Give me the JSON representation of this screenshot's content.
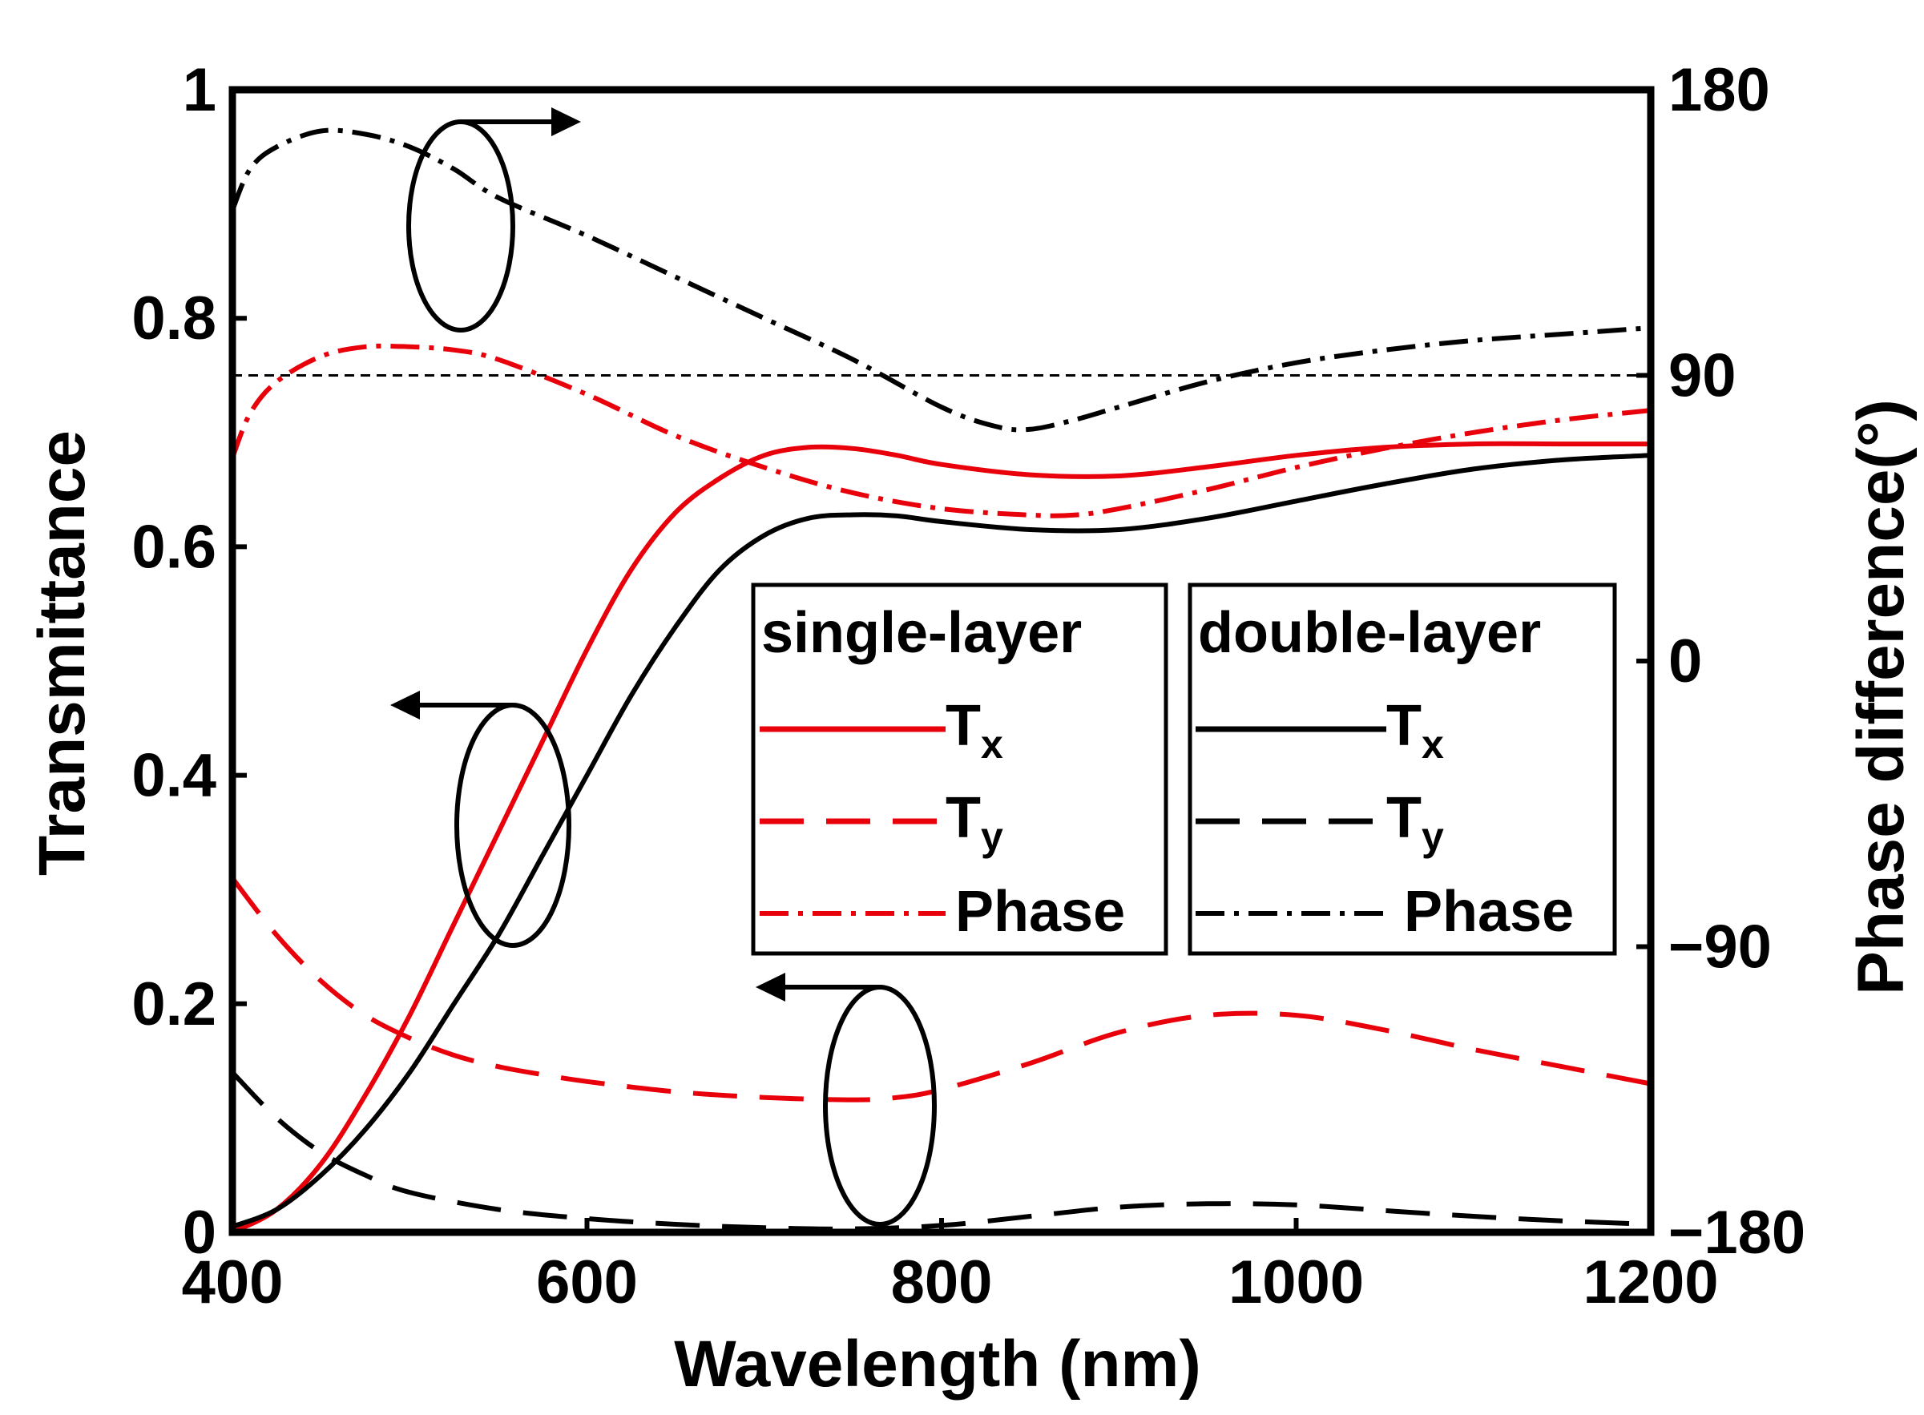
{
  "chart_data": {
    "type": "line",
    "xlabel": "Wavelength (nm)",
    "ylabel": "Transmittance",
    "y2label": "Phase difference(°)",
    "xlim": [
      400,
      1200
    ],
    "ylim": [
      0,
      1
    ],
    "y2lim": [
      -180,
      180
    ],
    "x_ticks": [
      "400",
      "600",
      "800",
      "1000",
      "1200"
    ],
    "y_ticks": [
      "0",
      "0.2",
      "0.4",
      "0.6",
      "0.8",
      "1"
    ],
    "y2_ticks": [
      "−180",
      "−90",
      "0",
      "90",
      "180"
    ],
    "reference_line": {
      "axis": "y2",
      "value": 90,
      "style": "dashed",
      "color": "#000000"
    },
    "legend": {
      "placement": "center-right",
      "groups": [
        {
          "title": "single-layer",
          "entries": [
            {
              "label": "T",
              "sub": "x",
              "series": 0
            },
            {
              "label": "T",
              "sub": "y",
              "series": 1
            },
            {
              "label": "Phase",
              "sub": "",
              "series": 2
            }
          ]
        },
        {
          "title": "double-layer",
          "entries": [
            {
              "label": "T",
              "sub": "x",
              "series": 3
            },
            {
              "label": "T",
              "sub": "y",
              "series": 4
            },
            {
              "label": "Phase",
              "sub": "",
              "series": 5
            }
          ]
        }
      ]
    },
    "series": [
      {
        "group": "single-layer",
        "axis": "y",
        "color": "#e8000b",
        "dash": "solid",
        "x": [
          400,
          425,
          450,
          475,
          500,
          525,
          550,
          575,
          600,
          625,
          650,
          675,
          700,
          725,
          750,
          775,
          800,
          850,
          900,
          950,
          1000,
          1050,
          1100,
          1150,
          1200
        ],
        "y": [
          0.0,
          0.02,
          0.06,
          0.12,
          0.19,
          0.27,
          0.35,
          0.43,
          0.51,
          0.58,
          0.63,
          0.66,
          0.68,
          0.687,
          0.686,
          0.68,
          0.672,
          0.663,
          0.662,
          0.67,
          0.68,
          0.687,
          0.69,
          0.69,
          0.69
        ]
      },
      {
        "group": "single-layer",
        "axis": "y",
        "color": "#e8000b",
        "dash": "dashed",
        "x": [
          400,
          425,
          450,
          475,
          500,
          525,
          550,
          575,
          600,
          650,
          700,
          750,
          775,
          800,
          850,
          900,
          950,
          1000,
          1050,
          1100,
          1150,
          1200
        ],
        "y": [
          0.31,
          0.26,
          0.22,
          0.19,
          0.17,
          0.155,
          0.145,
          0.138,
          0.132,
          0.123,
          0.118,
          0.116,
          0.118,
          0.125,
          0.148,
          0.175,
          0.19,
          0.19,
          0.177,
          0.16,
          0.145,
          0.13
        ]
      },
      {
        "group": "single-layer",
        "axis": "y2",
        "color": "#e8000b",
        "dash": "dashdot",
        "x": [
          400,
          410,
          425,
          450,
          475,
          500,
          525,
          550,
          600,
          650,
          700,
          750,
          800,
          850,
          875,
          900,
          950,
          1000,
          1050,
          1100,
          1150,
          1200
        ],
        "y": [
          64,
          78,
          88,
          96,
          99,
          99,
          98,
          95,
          84,
          71,
          61,
          53,
          48,
          46,
          46,
          48,
          54,
          61,
          67,
          72,
          76,
          79
        ]
      },
      {
        "group": "double-layer",
        "axis": "y",
        "color": "#000000",
        "dash": "solid",
        "x": [
          400,
          425,
          450,
          475,
          500,
          525,
          550,
          575,
          600,
          625,
          650,
          675,
          700,
          725,
          750,
          775,
          800,
          850,
          900,
          950,
          1000,
          1050,
          1100,
          1150,
          1200
        ],
        "y": [
          0.005,
          0.02,
          0.05,
          0.09,
          0.14,
          0.2,
          0.26,
          0.33,
          0.4,
          0.47,
          0.53,
          0.58,
          0.61,
          0.625,
          0.628,
          0.627,
          0.622,
          0.615,
          0.615,
          0.625,
          0.64,
          0.655,
          0.668,
          0.676,
          0.68
        ]
      },
      {
        "group": "double-layer",
        "axis": "y",
        "color": "#000000",
        "dash": "dashed",
        "x": [
          400,
          425,
          450,
          475,
          500,
          550,
          600,
          650,
          700,
          750,
          800,
          850,
          900,
          950,
          1000,
          1050,
          1100,
          1150,
          1200
        ],
        "y": [
          0.14,
          0.1,
          0.07,
          0.05,
          0.035,
          0.02,
          0.012,
          0.007,
          0.004,
          0.003,
          0.006,
          0.014,
          0.022,
          0.025,
          0.024,
          0.019,
          0.014,
          0.01,
          0.007
        ]
      },
      {
        "group": "double-layer",
        "axis": "y2",
        "color": "#000000",
        "dash": "dashdot",
        "x": [
          400,
          410,
          425,
          450,
          475,
          500,
          525,
          550,
          600,
          650,
          700,
          750,
          800,
          830,
          850,
          875,
          900,
          950,
          1000,
          1050,
          1100,
          1150,
          1200
        ],
        "y": [
          142,
          155,
          162,
          167,
          166,
          162,
          155,
          146,
          134,
          121,
          108,
          95,
          80,
          74,
          73,
          76,
          80,
          88,
          94,
          98,
          101,
          103,
          105
        ]
      }
    ]
  }
}
